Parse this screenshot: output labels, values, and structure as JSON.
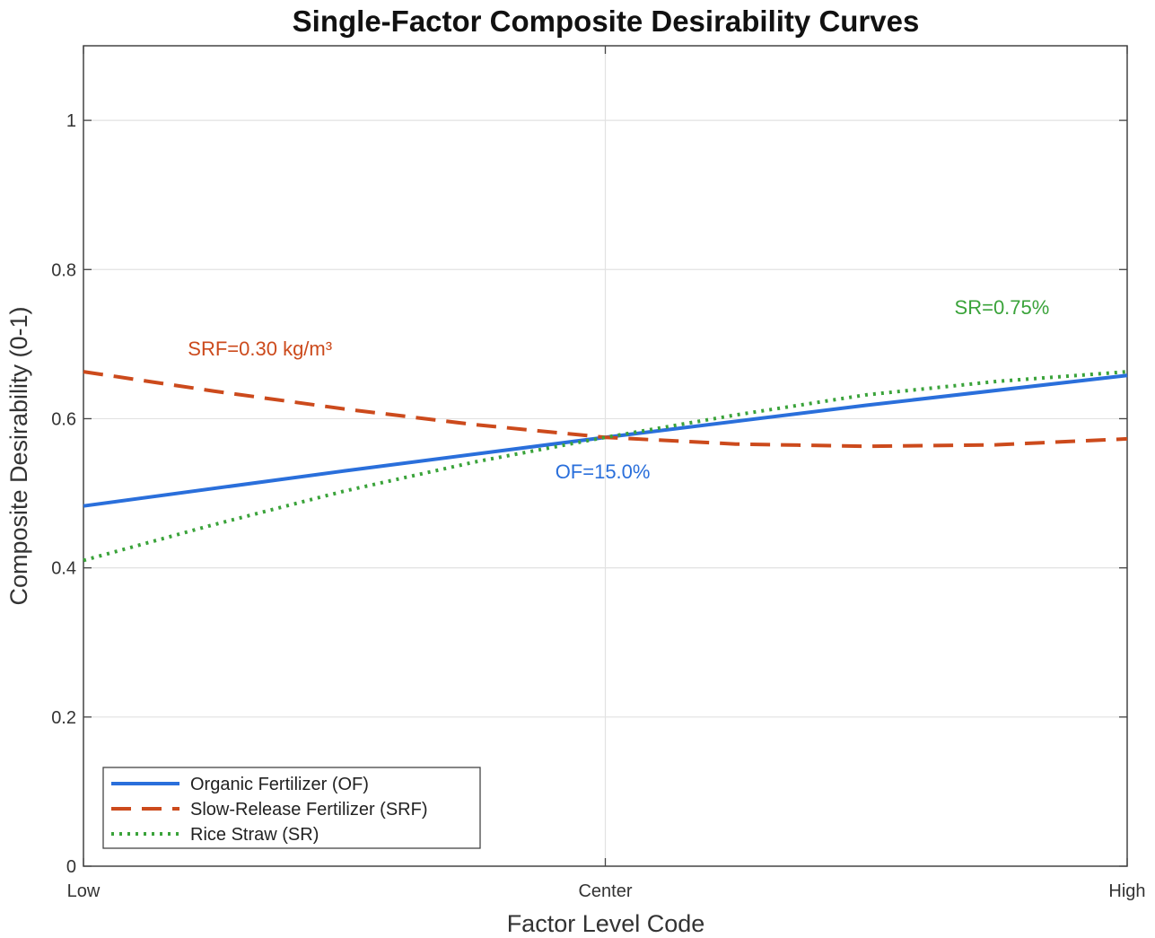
{
  "chart_data": {
    "type": "line",
    "title": "Single-Factor Composite Desirability Curves",
    "xlabel": "Factor Level Code",
    "ylabel": "Composite Desirability (0-1)",
    "x_tick_labels": [
      "Low",
      "Center",
      "High"
    ],
    "x_ticks": [
      -1,
      0,
      1
    ],
    "xlim": [
      -1,
      1
    ],
    "ylim": [
      0,
      1.1
    ],
    "y_ticks": [
      0,
      0.2,
      0.4,
      0.6,
      0.8,
      1
    ],
    "y_tick_labels": [
      "0",
      "0.2",
      "0.4",
      "0.6",
      "0.8",
      "1"
    ],
    "grid": true,
    "legend_position": "bottom-left",
    "series": [
      {
        "name": "Organic Fertilizer (OF)",
        "color": "#2a6fdb",
        "style": "solid",
        "x": [
          -1,
          -0.5,
          0,
          0.5,
          1
        ],
        "y": [
          0.483,
          0.53,
          0.575,
          0.618,
          0.658
        ]
      },
      {
        "name": "Slow-Release Fertilizer (SRF)",
        "color": "#cc4a1c",
        "style": "dashed",
        "x": [
          -1,
          -0.75,
          -0.5,
          -0.25,
          0,
          0.25,
          0.5,
          0.75,
          1
        ],
        "y": [
          0.663,
          0.637,
          0.613,
          0.592,
          0.575,
          0.566,
          0.563,
          0.565,
          0.573
        ]
      },
      {
        "name": "Rice Straw (SR)",
        "color": "#3aa33a",
        "style": "dotted",
        "x": [
          -1,
          -0.75,
          -0.5,
          -0.25,
          0,
          0.25,
          0.5,
          0.75,
          1
        ],
        "y": [
          0.41,
          0.458,
          0.503,
          0.542,
          0.575,
          0.605,
          0.632,
          0.65,
          0.663
        ]
      }
    ],
    "annotations": [
      {
        "text": "SRF=0.30 kg/m³",
        "series": "Slow-Release Fertilizer (SRF)",
        "x": -0.8,
        "y": 0.685
      },
      {
        "text": "OF=15.0%",
        "series": "Organic Fertilizer (OF)",
        "x": -0.005,
        "y": 0.52
      },
      {
        "text": "SR=0.75%",
        "series": "Rice Straw (SR)",
        "x": 0.76,
        "y": 0.74
      }
    ]
  }
}
